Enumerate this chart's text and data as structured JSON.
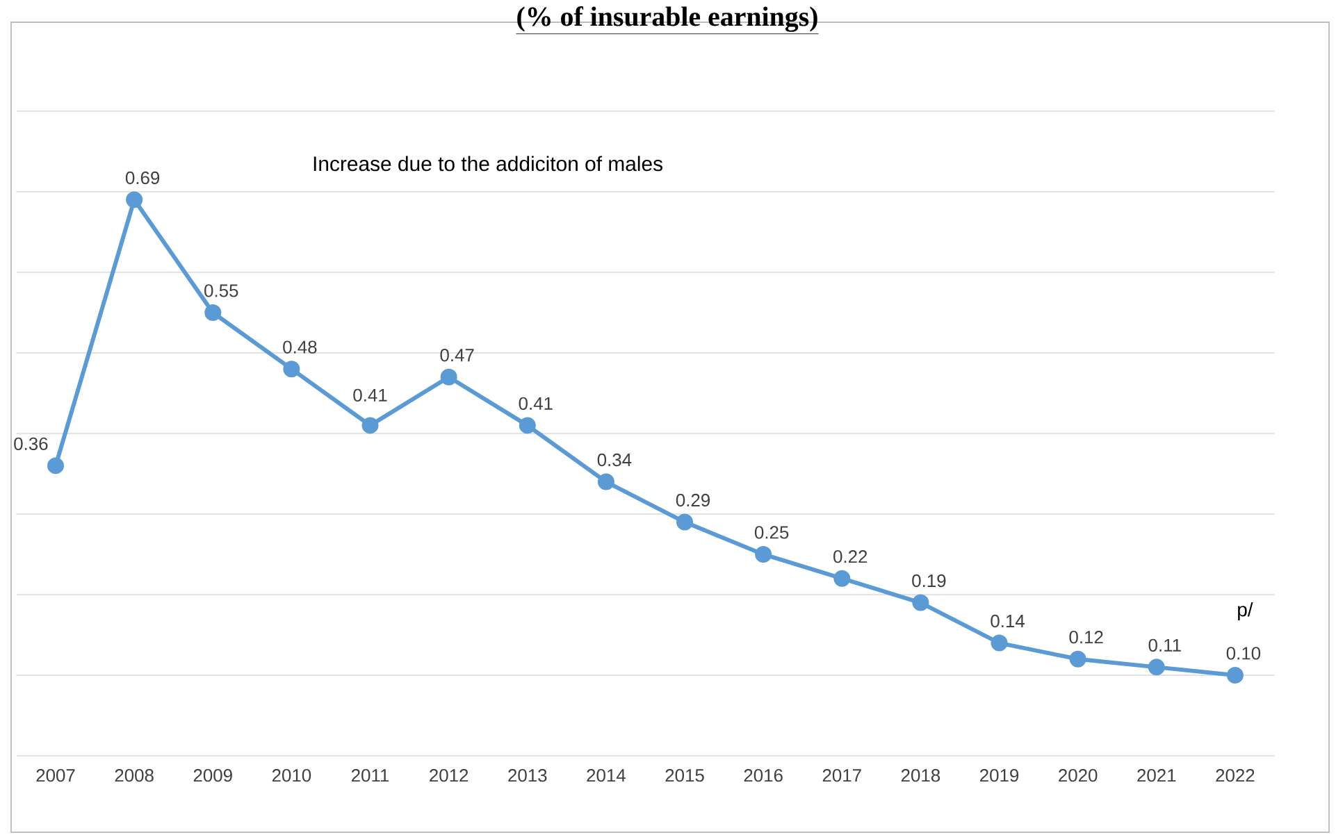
{
  "chart_data": {
    "type": "line",
    "title": "(% of insurable earnings)",
    "categories": [
      "2007",
      "2008",
      "2009",
      "2010",
      "2011",
      "2012",
      "2013",
      "2014",
      "2015",
      "2016",
      "2017",
      "2018",
      "2019",
      "2020",
      "2021",
      "2022"
    ],
    "series": [
      {
        "color": "#5b9bd5",
        "values": [
          0.36,
          0.69,
          0.55,
          0.48,
          0.41,
          0.47,
          0.41,
          0.34,
          0.29,
          0.25,
          0.22,
          0.19,
          0.14,
          0.12,
          0.11,
          0.1
        ],
        "value_labels": [
          "0.36",
          "0.69",
          "0.55",
          "0.48",
          "0.41",
          "0.47",
          "0.41",
          "0.34",
          "0.29",
          "0.25",
          "0.22",
          "0.19",
          "0.14",
          "0.12",
          "0.11",
          "0.10"
        ]
      }
    ],
    "ylim": [
      0,
      0.8
    ],
    "yticks": [
      {
        "value": 0,
        "label": null
      },
      {
        "value": 0.1,
        "label": null
      },
      {
        "value": 0.2,
        "label": null
      },
      {
        "value": 0.3,
        "label": null
      },
      {
        "value": 0.4,
        "label": null
      },
      {
        "value": 0.5,
        "label": null
      },
      {
        "value": 0.6,
        "label": null
      },
      {
        "value": 0.7,
        "label": null
      },
      {
        "value": 0.8,
        "label": null
      }
    ],
    "tick_labels": "x",
    "grid": "y",
    "marker": "circle",
    "line_style": "solid",
    "annotations": [
      "Increase due to the addiciton of males",
      "p/"
    ]
  }
}
